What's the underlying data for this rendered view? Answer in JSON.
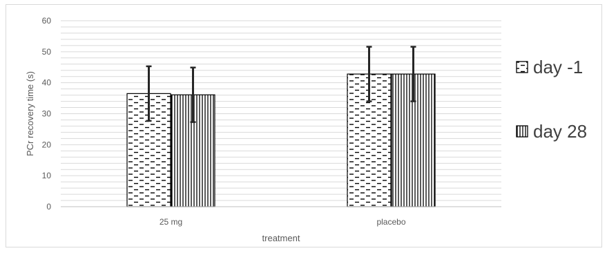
{
  "chart_data": {
    "type": "bar",
    "title": "",
    "xlabel": "treatment",
    "ylabel": "PCr recovery time (s)",
    "categories": [
      "25 mg",
      "placebo"
    ],
    "series": [
      {
        "name": "day -1",
        "values": [
          36.5,
          42.8
        ],
        "error": [
          8.8,
          8.8
        ],
        "pattern": "dashes"
      },
      {
        "name": "day 28",
        "values": [
          36.1,
          42.8
        ],
        "error": [
          8.8,
          8.8
        ],
        "pattern": "vertical-lines"
      }
    ],
    "ylim": [
      0,
      60
    ],
    "yticks": [
      0,
      10,
      20,
      30,
      40,
      50,
      60
    ],
    "grid": true,
    "legend": "right",
    "colors": {
      "bar_edge": "#000000",
      "error_bar": "#262626",
      "grid": "#d9d9d9",
      "text": "#595959"
    }
  }
}
